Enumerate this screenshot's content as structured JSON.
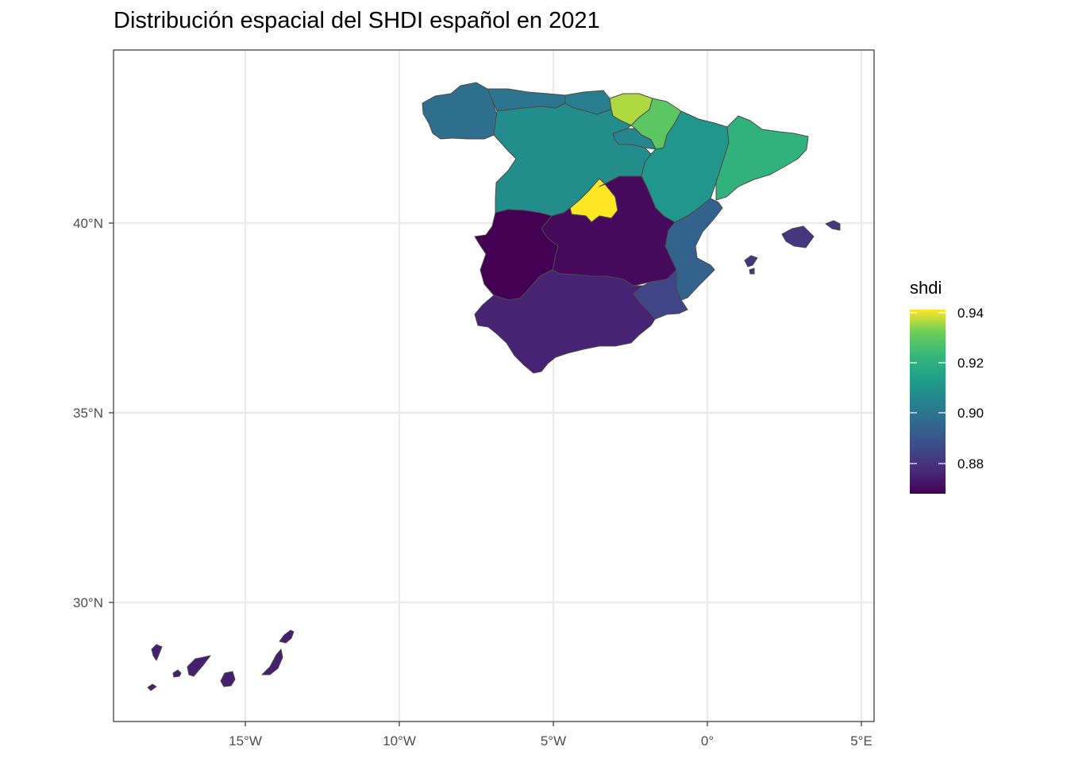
{
  "title": "Distribución espacial del SHDI español en 2021",
  "chart_data": {
    "type": "choropleth",
    "title": "Distribución espacial del SHDI español en 2021",
    "x_ticks": [
      "15°W",
      "10°W",
      "5°W",
      "0°",
      "5°E"
    ],
    "y_ticks": [
      "40°N",
      "35°N",
      "30°N"
    ],
    "grid": true,
    "legend": {
      "title": "shdi",
      "position": "right",
      "labels": [
        "0.94",
        "0.92",
        "0.90",
        "0.88"
      ],
      "range": [
        0.867,
        0.94
      ],
      "palette": "viridis"
    },
    "regions": [
      {
        "region": "Galicia",
        "shdi": 0.897
      },
      {
        "region": "Asturias",
        "shdi": 0.899
      },
      {
        "region": "Cantabria",
        "shdi": 0.902
      },
      {
        "region": "País Vasco",
        "shdi": 0.935
      },
      {
        "region": "Navarra",
        "shdi": 0.928
      },
      {
        "region": "La Rioja",
        "shdi": 0.905
      },
      {
        "region": "Aragón",
        "shdi": 0.91
      },
      {
        "region": "Cataluña",
        "shdi": 0.92
      },
      {
        "region": "Castilla y León",
        "shdi": 0.907
      },
      {
        "region": "Madrid",
        "shdi": 0.94
      },
      {
        "region": "Castilla-La Mancha",
        "shdi": 0.869
      },
      {
        "region": "Extremadura",
        "shdi": 0.867
      },
      {
        "region": "Comunidad Valenciana",
        "shdi": 0.893
      },
      {
        "region": "Murcia",
        "shdi": 0.884
      },
      {
        "region": "Andalucía",
        "shdi": 0.875
      },
      {
        "region": "Illes Balears",
        "shdi": 0.88
      },
      {
        "region": "Canarias",
        "shdi": 0.874
      }
    ]
  }
}
